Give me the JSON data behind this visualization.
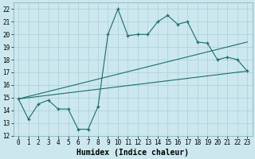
{
  "line1_x": [
    0,
    1,
    2,
    3,
    4,
    5,
    6,
    7,
    8,
    9,
    10,
    11,
    12,
    13,
    14,
    15,
    16,
    17,
    18,
    19,
    20,
    21,
    22,
    23
  ],
  "line1_y": [
    14.9,
    13.3,
    14.5,
    14.8,
    14.1,
    14.1,
    12.5,
    12.5,
    14.3,
    20.0,
    22.0,
    19.9,
    20.0,
    20.0,
    21.0,
    21.5,
    20.8,
    21.0,
    19.4,
    19.3,
    18.0,
    18.2,
    18.0,
    17.1
  ],
  "line2_x": [
    0,
    23
  ],
  "line2_y": [
    14.9,
    17.1
  ],
  "line3_x": [
    0,
    23
  ],
  "line3_y": [
    14.9,
    19.4
  ],
  "bg_color": "#cce8ee",
  "grid_color": "#a8cfd8",
  "line_color": "#1a6e6a",
  "xlabel": "Humidex (Indice chaleur)",
  "xlim": [
    -0.5,
    23.5
  ],
  "ylim": [
    12,
    22.5
  ],
  "xticks": [
    0,
    1,
    2,
    3,
    4,
    5,
    6,
    7,
    8,
    9,
    10,
    11,
    12,
    13,
    14,
    15,
    16,
    17,
    18,
    19,
    20,
    21,
    22,
    23
  ],
  "yticks": [
    12,
    13,
    14,
    15,
    16,
    17,
    18,
    19,
    20,
    21,
    22
  ],
  "tick_fontsize": 5.5,
  "xlabel_fontsize": 7.0
}
